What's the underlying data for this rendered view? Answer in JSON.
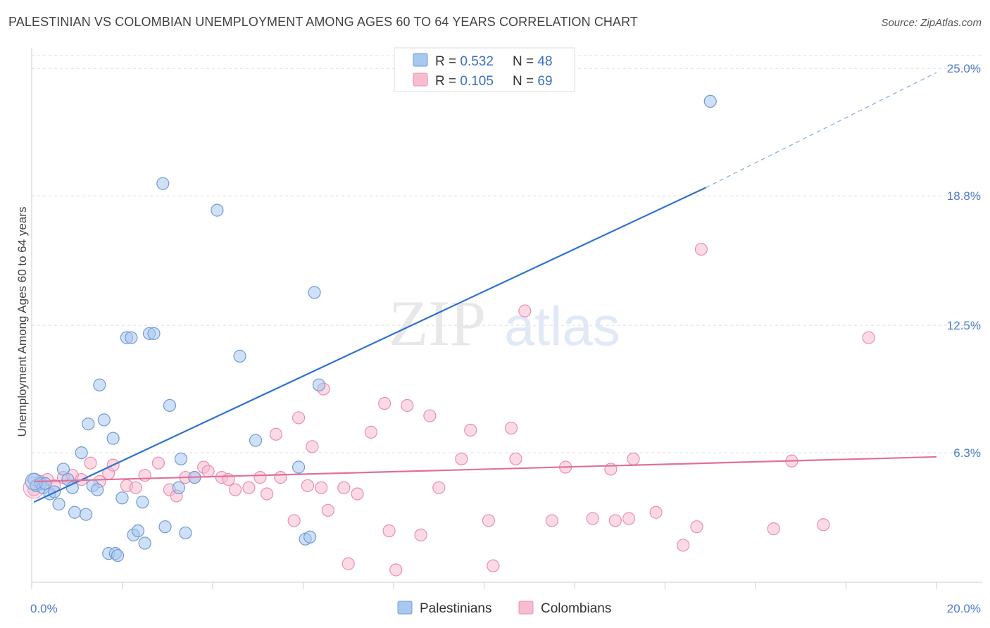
{
  "title": "PALESTINIAN VS COLOMBIAN UNEMPLOYMENT AMONG AGES 60 TO 64 YEARS CORRELATION CHART",
  "source": "Source: ZipAtlas.com",
  "watermark": {
    "zip": "ZIP",
    "atlas": "atlas"
  },
  "colors": {
    "pal_fill": "#a9c8f0",
    "pal_stroke": "#6f9bd8",
    "pal_line": "#2f72cf",
    "col_fill": "#f7bcd0",
    "col_stroke": "#e98fae",
    "col_line": "#e0709a",
    "axis_label": "#4a7bc8",
    "grid": "#dddddd"
  },
  "chart_data": {
    "type": "scatter",
    "title": "PALESTINIAN VS COLOMBIAN UNEMPLOYMENT AMONG AGES 60 TO 64 YEARS CORRELATION CHART",
    "xlabel": "",
    "ylabel": "Unemployment Among Ages 60 to 64 years",
    "xlim": [
      0,
      20
    ],
    "ylim": [
      0,
      26
    ],
    "x_tick_labels": [
      {
        "value": 0,
        "label": "0.0%"
      },
      {
        "value": 20,
        "label": "20.0%"
      }
    ],
    "y_ticks": [
      {
        "value": 6.3,
        "label": "6.3%"
      },
      {
        "value": 12.5,
        "label": "12.5%"
      },
      {
        "value": 18.8,
        "label": "18.8%"
      },
      {
        "value": 25.0,
        "label": "25.0%"
      }
    ],
    "legend": [
      {
        "name": "Palestinians",
        "r_label": "R = ",
        "r": "0.532",
        "n_label": "N = ",
        "n": "48"
      },
      {
        "name": "Colombians",
        "r_label": "R = ",
        "r": "0.105",
        "n_label": "N = ",
        "n": "69"
      }
    ],
    "series": [
      {
        "name": "Palestinians",
        "trend": {
          "x0": 0.05,
          "y0": 3.9,
          "x1": 14.9,
          "y1": 19.2,
          "dash_x1": 20.0,
          "dash_y1": 24.8
        },
        "points": [
          [
            0.05,
            5.0
          ],
          [
            0.1,
            4.7
          ],
          [
            0.2,
            4.8
          ],
          [
            0.25,
            4.6
          ],
          [
            0.3,
            4.8
          ],
          [
            0.4,
            4.3
          ],
          [
            0.5,
            4.4
          ],
          [
            0.6,
            3.8
          ],
          [
            0.7,
            5.5
          ],
          [
            0.8,
            5.0
          ],
          [
            0.9,
            4.6
          ],
          [
            0.95,
            3.4
          ],
          [
            1.1,
            6.3
          ],
          [
            1.2,
            3.3
          ],
          [
            1.25,
            7.7
          ],
          [
            1.35,
            4.7
          ],
          [
            1.45,
            4.5
          ],
          [
            1.5,
            9.6
          ],
          [
            1.6,
            7.9
          ],
          [
            1.7,
            1.4
          ],
          [
            1.8,
            7.0
          ],
          [
            1.85,
            1.4
          ],
          [
            1.9,
            1.3
          ],
          [
            2.0,
            4.1
          ],
          [
            2.1,
            11.9
          ],
          [
            2.2,
            11.9
          ],
          [
            2.25,
            2.3
          ],
          [
            2.35,
            2.5
          ],
          [
            2.45,
            3.9
          ],
          [
            2.5,
            1.9
          ],
          [
            2.6,
            12.1
          ],
          [
            2.7,
            12.1
          ],
          [
            2.9,
            19.4
          ],
          [
            2.95,
            2.7
          ],
          [
            3.05,
            8.6
          ],
          [
            3.25,
            4.6
          ],
          [
            3.3,
            6.0
          ],
          [
            3.4,
            2.4
          ],
          [
            3.6,
            5.1
          ],
          [
            4.1,
            18.1
          ],
          [
            4.6,
            11.0
          ],
          [
            4.95,
            6.9
          ],
          [
            5.9,
            5.6
          ],
          [
            6.05,
            2.1
          ],
          [
            6.15,
            2.2
          ],
          [
            6.25,
            14.1
          ],
          [
            6.35,
            9.6
          ],
          [
            15.0,
            23.4
          ]
        ]
      },
      {
        "name": "Colombians",
        "trend": {
          "x0": 0.05,
          "y0": 4.9,
          "x1": 20.0,
          "y1": 6.1
        },
        "points": [
          [
            0.05,
            4.5
          ],
          [
            0.2,
            4.9
          ],
          [
            0.35,
            5.0
          ],
          [
            0.5,
            4.7
          ],
          [
            0.7,
            5.1
          ],
          [
            0.9,
            5.2
          ],
          [
            1.1,
            5.0
          ],
          [
            1.3,
            5.8
          ],
          [
            1.5,
            4.9
          ],
          [
            1.7,
            5.3
          ],
          [
            1.8,
            5.7
          ],
          [
            2.1,
            4.7
          ],
          [
            2.3,
            4.6
          ],
          [
            2.5,
            5.2
          ],
          [
            2.8,
            5.8
          ],
          [
            3.05,
            4.5
          ],
          [
            3.2,
            4.2
          ],
          [
            3.4,
            5.1
          ],
          [
            3.6,
            5.1
          ],
          [
            3.8,
            5.6
          ],
          [
            3.9,
            5.4
          ],
          [
            4.2,
            5.1
          ],
          [
            4.35,
            5.0
          ],
          [
            4.5,
            4.5
          ],
          [
            4.8,
            4.6
          ],
          [
            5.05,
            5.1
          ],
          [
            5.2,
            4.3
          ],
          [
            5.4,
            7.2
          ],
          [
            5.5,
            5.1
          ],
          [
            5.8,
            3.0
          ],
          [
            5.9,
            8.0
          ],
          [
            6.1,
            4.7
          ],
          [
            6.2,
            6.6
          ],
          [
            6.4,
            4.6
          ],
          [
            6.45,
            9.4
          ],
          [
            6.55,
            3.5
          ],
          [
            6.9,
            4.6
          ],
          [
            7.0,
            0.9
          ],
          [
            7.2,
            4.3
          ],
          [
            7.5,
            7.3
          ],
          [
            7.8,
            8.7
          ],
          [
            7.9,
            2.5
          ],
          [
            8.05,
            0.6
          ],
          [
            8.3,
            8.6
          ],
          [
            8.6,
            2.3
          ],
          [
            8.8,
            8.1
          ],
          [
            9.0,
            4.6
          ],
          [
            9.5,
            6.0
          ],
          [
            9.7,
            7.4
          ],
          [
            10.1,
            3.0
          ],
          [
            10.2,
            0.8
          ],
          [
            10.6,
            7.5
          ],
          [
            10.7,
            6.0
          ],
          [
            10.9,
            13.2
          ],
          [
            11.5,
            3.0
          ],
          [
            11.8,
            5.6
          ],
          [
            12.4,
            3.1
          ],
          [
            12.8,
            5.5
          ],
          [
            12.9,
            3.0
          ],
          [
            13.2,
            3.1
          ],
          [
            13.3,
            6.0
          ],
          [
            13.8,
            3.4
          ],
          [
            14.4,
            1.8
          ],
          [
            14.7,
            2.7
          ],
          [
            14.8,
            16.2
          ],
          [
            16.4,
            2.6
          ],
          [
            16.8,
            5.9
          ],
          [
            17.5,
            2.8
          ],
          [
            18.5,
            11.9
          ]
        ]
      }
    ]
  }
}
